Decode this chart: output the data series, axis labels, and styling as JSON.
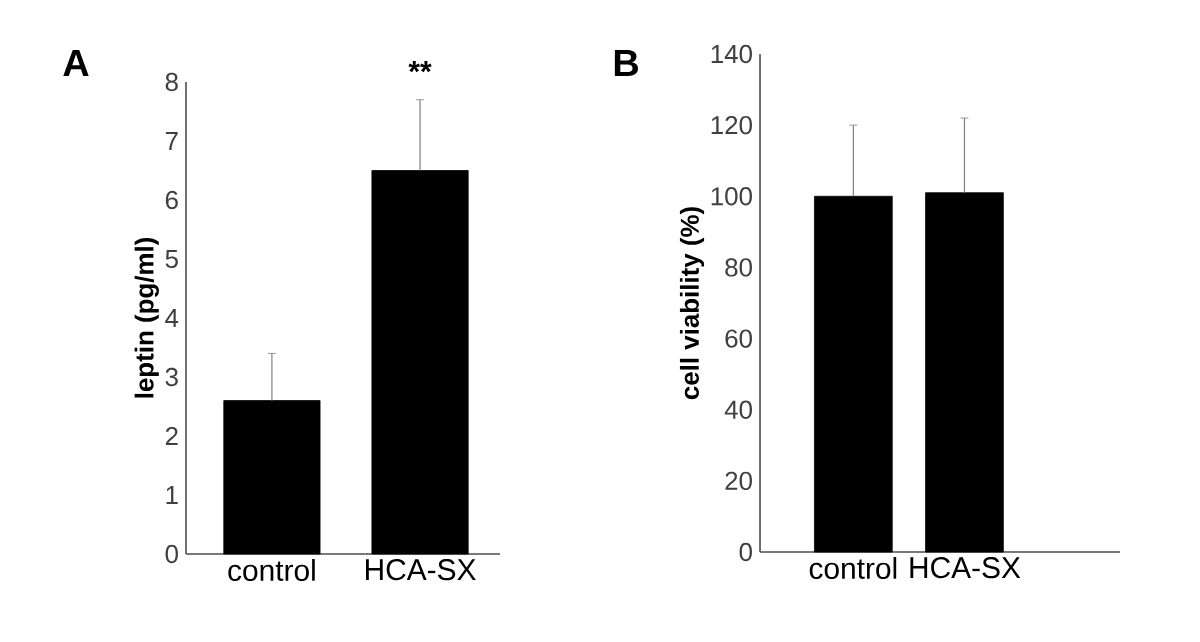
{
  "chart_data": [
    {
      "type": "bar",
      "title": "A",
      "ylabel": "leptin (pg/ml)",
      "categories": [
        "control",
        "HCA-SX"
      ],
      "values": [
        2.6,
        6.5
      ],
      "errors": [
        0.8,
        1.2
      ],
      "color": "#000000",
      "ylim": [
        0,
        8
      ],
      "yticks": [
        0,
        1,
        2,
        3,
        4,
        5,
        6,
        7,
        8
      ],
      "annotations": [
        "**"
      ]
    },
    {
      "type": "bar",
      "title": "B",
      "ylabel": "cell viability  (%)",
      "categories": [
        "control",
        "HCA-SX"
      ],
      "values": [
        100,
        101
      ],
      "errors": [
        20,
        21
      ],
      "color": "#000000",
      "ylim": [
        0,
        140
      ],
      "yticks": [
        0,
        20,
        40,
        60,
        80,
        100,
        120,
        140
      ]
    }
  ]
}
